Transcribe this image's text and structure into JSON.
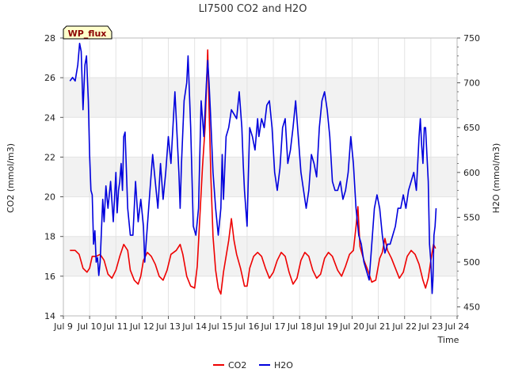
{
  "chart_data": {
    "type": "line",
    "title": "LI7500 CO2 and H2O",
    "xlabel": "Time",
    "ylabel_left": "CO2 (mmol/m3)",
    "ylabel_right": "H2O (mmol/m3)",
    "badge": "WP_flux",
    "xlim": [
      9,
      24
    ],
    "ylim_left": [
      14,
      28
    ],
    "ylim_right": [
      440,
      750
    ],
    "x_ticks": [
      {
        "value": 9,
        "label": "Jul 9"
      },
      {
        "value": 10,
        "label": "Jul 10"
      },
      {
        "value": 11,
        "label": "Jul 11"
      },
      {
        "value": 12,
        "label": "Jul 12"
      },
      {
        "value": 13,
        "label": "Jul 13"
      },
      {
        "value": 14,
        "label": "Jul 14"
      },
      {
        "value": 15,
        "label": "Jul 15"
      },
      {
        "value": 16,
        "label": "Jul 16"
      },
      {
        "value": 17,
        "label": "Jul 17"
      },
      {
        "value": 18,
        "label": "Jul 18"
      },
      {
        "value": 19,
        "label": "Jul 19"
      },
      {
        "value": 20,
        "label": "Jul 20"
      },
      {
        "value": 21,
        "label": "Jul 21"
      },
      {
        "value": 22,
        "label": "Jul 22"
      },
      {
        "value": 23,
        "label": "Jul 23"
      },
      {
        "value": 24,
        "label": "Jul 24"
      }
    ],
    "y_left_ticks": [
      14,
      16,
      18,
      20,
      22,
      24,
      26,
      28
    ],
    "y_right_ticks": [
      450,
      500,
      550,
      600,
      650,
      700,
      750
    ],
    "grid": true,
    "legend_position": "bottom-center",
    "series": [
      {
        "name": "CO2",
        "axis": "left",
        "color": "#ee0000",
        "points": [
          [
            9.25,
            17.3
          ],
          [
            9.45,
            17.3
          ],
          [
            9.6,
            17.1
          ],
          [
            9.75,
            16.4
          ],
          [
            9.9,
            16.2
          ],
          [
            10.0,
            16.4
          ],
          [
            10.1,
            17.0
          ],
          [
            10.25,
            17.0
          ],
          [
            10.4,
            17.1
          ],
          [
            10.55,
            16.8
          ],
          [
            10.7,
            16.1
          ],
          [
            10.85,
            15.9
          ],
          [
            11.0,
            16.3
          ],
          [
            11.15,
            17.0
          ],
          [
            11.3,
            17.6
          ],
          [
            11.45,
            17.3
          ],
          [
            11.55,
            16.3
          ],
          [
            11.7,
            15.8
          ],
          [
            11.85,
            15.6
          ],
          [
            11.95,
            16.0
          ],
          [
            12.05,
            16.8
          ],
          [
            12.2,
            17.2
          ],
          [
            12.35,
            17.0
          ],
          [
            12.5,
            16.6
          ],
          [
            12.65,
            16.0
          ],
          [
            12.8,
            15.8
          ],
          [
            12.95,
            16.3
          ],
          [
            13.1,
            17.1
          ],
          [
            13.3,
            17.3
          ],
          [
            13.45,
            17.6
          ],
          [
            13.55,
            17.1
          ],
          [
            13.7,
            16.0
          ],
          [
            13.85,
            15.5
          ],
          [
            14.0,
            15.4
          ],
          [
            14.1,
            16.5
          ],
          [
            14.2,
            19.0
          ],
          [
            14.3,
            21.5
          ],
          [
            14.4,
            23.5
          ],
          [
            14.45,
            25.5
          ],
          [
            14.5,
            27.4
          ],
          [
            14.55,
            24.5
          ],
          [
            14.62,
            21.0
          ],
          [
            14.7,
            18.0
          ],
          [
            14.8,
            16.3
          ],
          [
            14.9,
            15.4
          ],
          [
            15.0,
            15.1
          ],
          [
            15.1,
            16.2
          ],
          [
            15.2,
            17.0
          ],
          [
            15.3,
            17.8
          ],
          [
            15.4,
            18.9
          ],
          [
            15.5,
            17.8
          ],
          [
            15.6,
            17.1
          ],
          [
            15.75,
            16.4
          ],
          [
            15.9,
            15.5
          ],
          [
            16.0,
            15.5
          ],
          [
            16.1,
            16.4
          ],
          [
            16.25,
            17.0
          ],
          [
            16.4,
            17.2
          ],
          [
            16.55,
            17.0
          ],
          [
            16.7,
            16.4
          ],
          [
            16.85,
            15.9
          ],
          [
            17.0,
            16.2
          ],
          [
            17.15,
            16.8
          ],
          [
            17.3,
            17.2
          ],
          [
            17.45,
            17.0
          ],
          [
            17.6,
            16.2
          ],
          [
            17.75,
            15.6
          ],
          [
            17.9,
            15.9
          ],
          [
            18.05,
            16.8
          ],
          [
            18.2,
            17.2
          ],
          [
            18.35,
            17.0
          ],
          [
            18.5,
            16.3
          ],
          [
            18.65,
            15.9
          ],
          [
            18.8,
            16.1
          ],
          [
            18.95,
            16.9
          ],
          [
            19.1,
            17.2
          ],
          [
            19.25,
            17.0
          ],
          [
            19.45,
            16.3
          ],
          [
            19.6,
            16.0
          ],
          [
            19.75,
            16.5
          ],
          [
            19.9,
            17.1
          ],
          [
            20.05,
            17.3
          ],
          [
            20.15,
            18.5
          ],
          [
            20.22,
            19.5
          ],
          [
            20.3,
            17.5
          ],
          [
            20.45,
            16.8
          ],
          [
            20.6,
            16.3
          ],
          [
            20.75,
            15.7
          ],
          [
            20.9,
            15.8
          ],
          [
            21.05,
            16.9
          ],
          [
            21.15,
            17.2
          ],
          [
            21.25,
            17.9
          ],
          [
            21.35,
            17.3
          ],
          [
            21.5,
            16.9
          ],
          [
            21.65,
            16.4
          ],
          [
            21.8,
            15.9
          ],
          [
            21.95,
            16.2
          ],
          [
            22.1,
            17.0
          ],
          [
            22.25,
            17.3
          ],
          [
            22.4,
            17.1
          ],
          [
            22.55,
            16.6
          ],
          [
            22.7,
            15.8
          ],
          [
            22.8,
            15.4
          ],
          [
            22.9,
            15.9
          ],
          [
            23.0,
            16.8
          ],
          [
            23.1,
            17.6
          ],
          [
            23.18,
            17.4
          ]
        ]
      },
      {
        "name": "H2O",
        "axis": "right",
        "color": "#0000dd",
        "points": [
          [
            9.25,
            702
          ],
          [
            9.35,
            706
          ],
          [
            9.45,
            702
          ],
          [
            9.55,
            720
          ],
          [
            9.62,
            744
          ],
          [
            9.68,
            735
          ],
          [
            9.75,
            670
          ],
          [
            9.82,
            720
          ],
          [
            9.88,
            730
          ],
          [
            9.95,
            680
          ],
          [
            10.0,
            620
          ],
          [
            10.05,
            580
          ],
          [
            10.1,
            575
          ],
          [
            10.15,
            520
          ],
          [
            10.2,
            535
          ],
          [
            10.25,
            500
          ],
          [
            10.3,
            505
          ],
          [
            10.35,
            485
          ],
          [
            10.4,
            500
          ],
          [
            10.5,
            570
          ],
          [
            10.55,
            545
          ],
          [
            10.62,
            585
          ],
          [
            10.7,
            560
          ],
          [
            10.8,
            590
          ],
          [
            10.9,
            545
          ],
          [
            11.0,
            600
          ],
          [
            11.05,
            555
          ],
          [
            11.1,
            580
          ],
          [
            11.15,
            590
          ],
          [
            11.2,
            610
          ],
          [
            11.25,
            580
          ],
          [
            11.3,
            640
          ],
          [
            11.35,
            645
          ],
          [
            11.45,
            560
          ],
          [
            11.55,
            530
          ],
          [
            11.65,
            530
          ],
          [
            11.75,
            590
          ],
          [
            11.85,
            545
          ],
          [
            11.95,
            570
          ],
          [
            12.05,
            540
          ],
          [
            12.1,
            500
          ],
          [
            12.2,
            540
          ],
          [
            12.3,
            580
          ],
          [
            12.4,
            620
          ],
          [
            12.5,
            590
          ],
          [
            12.6,
            560
          ],
          [
            12.7,
            610
          ],
          [
            12.8,
            570
          ],
          [
            12.9,
            600
          ],
          [
            13.0,
            640
          ],
          [
            13.1,
            610
          ],
          [
            13.2,
            665
          ],
          [
            13.25,
            690
          ],
          [
            13.3,
            660
          ],
          [
            13.4,
            600
          ],
          [
            13.45,
            560
          ],
          [
            13.5,
            610
          ],
          [
            13.6,
            680
          ],
          [
            13.7,
            700
          ],
          [
            13.75,
            730
          ],
          [
            13.85,
            650
          ],
          [
            13.95,
            540
          ],
          [
            14.05,
            530
          ],
          [
            14.15,
            560
          ],
          [
            14.25,
            680
          ],
          [
            14.35,
            640
          ],
          [
            14.45,
            700
          ],
          [
            14.5,
            725
          ],
          [
            14.55,
            700
          ],
          [
            14.6,
            670
          ],
          [
            14.7,
            600
          ],
          [
            14.8,
            560
          ],
          [
            14.9,
            530
          ],
          [
            15.0,
            560
          ],
          [
            15.05,
            620
          ],
          [
            15.1,
            570
          ],
          [
            15.2,
            640
          ],
          [
            15.3,
            650
          ],
          [
            15.4,
            670
          ],
          [
            15.5,
            665
          ],
          [
            15.6,
            660
          ],
          [
            15.7,
            690
          ],
          [
            15.8,
            650
          ],
          [
            15.85,
            610
          ],
          [
            15.9,
            580
          ],
          [
            16.0,
            540
          ],
          [
            16.05,
            600
          ],
          [
            16.1,
            650
          ],
          [
            16.2,
            640
          ],
          [
            16.3,
            625
          ],
          [
            16.4,
            660
          ],
          [
            16.45,
            640
          ],
          [
            16.55,
            660
          ],
          [
            16.65,
            650
          ],
          [
            16.75,
            675
          ],
          [
            16.85,
            680
          ],
          [
            16.95,
            650
          ],
          [
            17.05,
            600
          ],
          [
            17.15,
            580
          ],
          [
            17.25,
            605
          ],
          [
            17.35,
            650
          ],
          [
            17.45,
            660
          ],
          [
            17.55,
            610
          ],
          [
            17.65,
            625
          ],
          [
            17.75,
            650
          ],
          [
            17.85,
            680
          ],
          [
            17.95,
            640
          ],
          [
            18.05,
            600
          ],
          [
            18.15,
            580
          ],
          [
            18.25,
            560
          ],
          [
            18.35,
            580
          ],
          [
            18.45,
            620
          ],
          [
            18.55,
            610
          ],
          [
            18.65,
            595
          ],
          [
            18.75,
            650
          ],
          [
            18.85,
            680
          ],
          [
            18.95,
            690
          ],
          [
            19.05,
            670
          ],
          [
            19.15,
            640
          ],
          [
            19.25,
            590
          ],
          [
            19.35,
            580
          ],
          [
            19.45,
            580
          ],
          [
            19.55,
            590
          ],
          [
            19.65,
            570
          ],
          [
            19.75,
            580
          ],
          [
            19.85,
            600
          ],
          [
            19.95,
            640
          ],
          [
            20.05,
            610
          ],
          [
            20.15,
            560
          ],
          [
            20.25,
            530
          ],
          [
            20.35,
            520
          ],
          [
            20.45,
            500
          ],
          [
            20.55,
            490
          ],
          [
            20.65,
            480
          ],
          [
            20.75,
            520
          ],
          [
            20.85,
            560
          ],
          [
            20.95,
            575
          ],
          [
            21.05,
            560
          ],
          [
            21.15,
            530
          ],
          [
            21.25,
            510
          ],
          [
            21.35,
            520
          ],
          [
            21.45,
            520
          ],
          [
            21.55,
            530
          ],
          [
            21.65,
            540
          ],
          [
            21.75,
            560
          ],
          [
            21.85,
            560
          ],
          [
            21.95,
            575
          ],
          [
            22.05,
            560
          ],
          [
            22.15,
            580
          ],
          [
            22.25,
            590
          ],
          [
            22.35,
            600
          ],
          [
            22.45,
            580
          ],
          [
            22.55,
            640
          ],
          [
            22.6,
            660
          ],
          [
            22.65,
            630
          ],
          [
            22.7,
            610
          ],
          [
            22.75,
            650
          ],
          [
            22.8,
            650
          ],
          [
            22.85,
            620
          ],
          [
            22.9,
            590
          ],
          [
            22.95,
            520
          ],
          [
            23.0,
            500
          ],
          [
            23.05,
            465
          ],
          [
            23.08,
            480
          ],
          [
            23.12,
            530
          ],
          [
            23.16,
            540
          ],
          [
            23.2,
            560
          ]
        ]
      }
    ]
  }
}
